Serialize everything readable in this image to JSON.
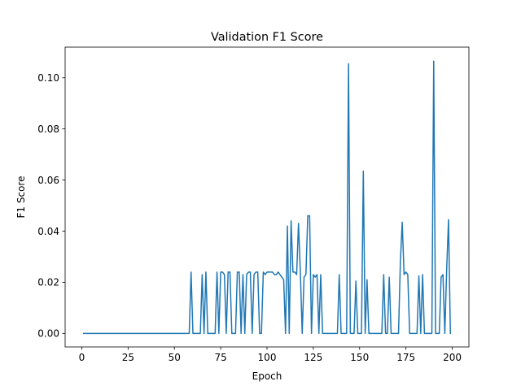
{
  "chart_data": {
    "type": "line",
    "title": "Validation F1 Score",
    "xlabel": "Epoch",
    "ylabel": "F1 Score",
    "xlim": [
      -9,
      209
    ],
    "ylim": [
      -0.0053,
      0.112
    ],
    "xticks": [
      0,
      25,
      50,
      75,
      100,
      125,
      150,
      175,
      200
    ],
    "yticks": [
      0.0,
      0.02,
      0.04,
      0.06,
      0.08,
      0.1
    ],
    "ytick_labels": [
      "0.00",
      "0.02",
      "0.04",
      "0.06",
      "0.08",
      "0.10"
    ],
    "grid": false,
    "line_color": "#1f77b4",
    "series": [
      {
        "points": [
          [
            1,
            0
          ],
          [
            58,
            0
          ],
          [
            59,
            0.024
          ],
          [
            60,
            0
          ],
          [
            64,
            0
          ],
          [
            65,
            0.023
          ],
          [
            66,
            0
          ],
          [
            67,
            0.024
          ],
          [
            68,
            0
          ],
          [
            72,
            0
          ],
          [
            73,
            0.024
          ],
          [
            74,
            0
          ],
          [
            75,
            0.024
          ],
          [
            76,
            0.024
          ],
          [
            77,
            0.023
          ],
          [
            78,
            0
          ],
          [
            79,
            0.024
          ],
          [
            80,
            0.024
          ],
          [
            81,
            0
          ],
          [
            83,
            0
          ],
          [
            84,
            0.024
          ],
          [
            85,
            0.024
          ],
          [
            86,
            0
          ],
          [
            87,
            0.023
          ],
          [
            88,
            0
          ],
          [
            89,
            0.023
          ],
          [
            90,
            0.024
          ],
          [
            91,
            0.024
          ],
          [
            92,
            0
          ],
          [
            93,
            0.023
          ],
          [
            94,
            0.024
          ],
          [
            95,
            0.024
          ],
          [
            96,
            0
          ],
          [
            97,
            0
          ],
          [
            98,
            0.024
          ],
          [
            99,
            0.023
          ],
          [
            100,
            0.024
          ],
          [
            101,
            0.024
          ],
          [
            102,
            0.024
          ],
          [
            103,
            0.024
          ],
          [
            104,
            0.023
          ],
          [
            105,
            0.023
          ],
          [
            106,
            0.024
          ],
          [
            107,
            0.023
          ],
          [
            108,
            0.022
          ],
          [
            109,
            0.021
          ],
          [
            110,
            0
          ],
          [
            111,
            0.042
          ],
          [
            112,
            0
          ],
          [
            113,
            0.044
          ],
          [
            114,
            0.024
          ],
          [
            115,
            0.024
          ],
          [
            116,
            0.023
          ],
          [
            117,
            0.043
          ],
          [
            118,
            0.024
          ],
          [
            119,
            0
          ],
          [
            120,
            0.022
          ],
          [
            121,
            0.023
          ],
          [
            122,
            0.046
          ],
          [
            123,
            0.046
          ],
          [
            124,
            0
          ],
          [
            125,
            0.023
          ],
          [
            126,
            0.022
          ],
          [
            127,
            0.023
          ],
          [
            128,
            0
          ],
          [
            129,
            0.023
          ],
          [
            130,
            0
          ],
          [
            138,
            0
          ],
          [
            139,
            0.023
          ],
          [
            140,
            0
          ],
          [
            143,
            0
          ],
          [
            144,
            0.1055
          ],
          [
            145,
            0
          ],
          [
            147,
            0
          ],
          [
            148,
            0.0205
          ],
          [
            149,
            0
          ],
          [
            151,
            0
          ],
          [
            152,
            0.0635
          ],
          [
            153,
            0
          ],
          [
            154,
            0.021
          ],
          [
            155,
            0
          ],
          [
            162,
            0
          ],
          [
            163,
            0.023
          ],
          [
            164,
            0
          ],
          [
            165,
            0
          ],
          [
            166,
            0.022
          ],
          [
            167,
            0
          ],
          [
            171,
            0
          ],
          [
            172,
            0.028
          ],
          [
            173,
            0.0435
          ],
          [
            174,
            0.023
          ],
          [
            175,
            0.024
          ],
          [
            176,
            0.023
          ],
          [
            177,
            0
          ],
          [
            181,
            0
          ],
          [
            182,
            0.0225
          ],
          [
            183,
            0
          ],
          [
            184,
            0.023
          ],
          [
            185,
            0
          ],
          [
            189,
            0
          ],
          [
            190,
            0.1065
          ],
          [
            191,
            0
          ],
          [
            193,
            0
          ],
          [
            194,
            0.022
          ],
          [
            195,
            0.023
          ],
          [
            196,
            0
          ],
          [
            197,
            0.025
          ],
          [
            198,
            0.0445
          ],
          [
            199,
            0
          ]
        ]
      }
    ]
  }
}
